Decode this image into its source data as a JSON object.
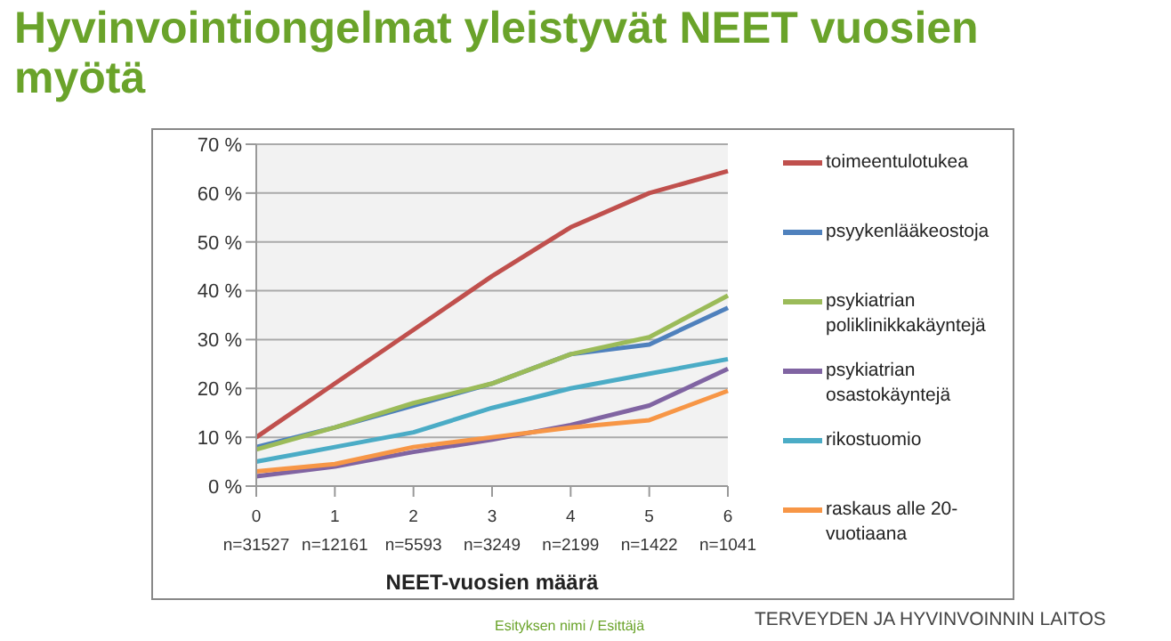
{
  "chart_data": {
    "type": "line",
    "title": "Hyvinvointiongelmat yleistyvät NEET vuosien myötä",
    "xlabel": "NEET-vuosien määrä",
    "categories": [
      "0\nn=31527",
      "1\nn=12161",
      "2\nn=5593",
      "3\nn=3249",
      "4\nn=2199",
      "5\nn=1422",
      "6\nn=1041"
    ],
    "series": [
      {
        "name": "toimeentulotukea",
        "color": "#c0504d",
        "values": [
          10,
          21,
          32,
          43,
          53,
          60,
          64.5
        ]
      },
      {
        "name": "psyykenlääkeostoja",
        "color": "#4f81bd",
        "values": [
          8,
          12,
          16.5,
          21,
          27,
          29,
          36.5
        ]
      },
      {
        "name": "psykiatrian poliklinikkakäyntejä",
        "color": "#9bbb59",
        "values": [
          7.5,
          12,
          17,
          21,
          27,
          30.5,
          39
        ]
      },
      {
        "name": "psykiatrian osastokäyntejä",
        "color": "#8064a2",
        "values": [
          2,
          4,
          7,
          9.5,
          12.5,
          16.5,
          24
        ]
      },
      {
        "name": "rikostuomio",
        "color": "#4bacc6",
        "values": [
          5,
          8,
          11,
          16,
          20,
          23,
          26
        ]
      },
      {
        "name": "raskaus alle 20-vuotiaana",
        "color": "#f79646",
        "values": [
          3,
          4.5,
          8,
          10,
          12,
          13.5,
          19.5
        ]
      }
    ],
    "ylim": [
      0,
      70
    ],
    "yticks": [
      {
        "value": 0,
        "label": "0 %"
      },
      {
        "value": 10,
        "label": "10 %"
      },
      {
        "value": 20,
        "label": "20 %"
      },
      {
        "value": 30,
        "label": "30 %"
      },
      {
        "value": 40,
        "label": "40 %"
      },
      {
        "value": 50,
        "label": "50 %"
      },
      {
        "value": 60,
        "label": "60 %"
      },
      {
        "value": 70,
        "label": "70 %"
      }
    ],
    "grid": "y",
    "legend": "right",
    "marker": "none",
    "line_style": "solid",
    "annotations": [
      "Esityksen nimi / Esittäjä",
      "TERVEYDEN JA HYVINVOINNIN LAITOS"
    ]
  }
}
